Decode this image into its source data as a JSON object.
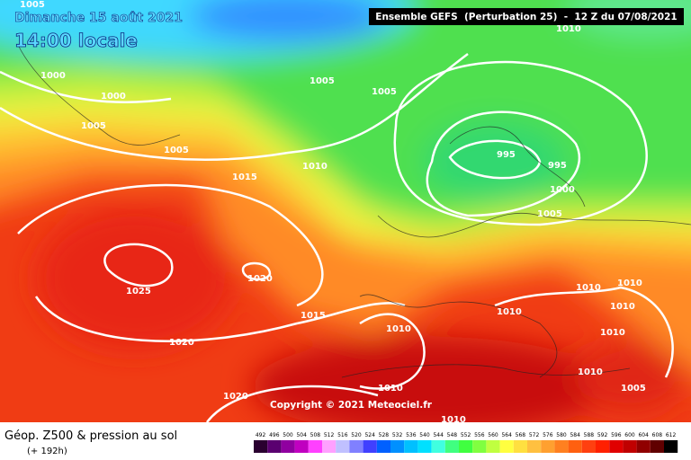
{
  "header": {
    "title": "Dimanche 15 août 2021",
    "time": "14:00 locale",
    "model": "Ensemble GEFS  (Perturbation 25)  -  12 Z du 07/08/2021"
  },
  "isobar_labels": [
    "1005",
    "1000",
    "1000",
    "1005",
    "1005",
    "1005",
    "1005",
    "1010",
    "1015",
    "995",
    "995",
    "1000",
    "1005",
    "1020",
    "1025",
    "1015",
    "1020",
    "1010",
    "1010",
    "1010",
    "1010",
    "1010",
    "1010",
    "1010",
    "1005",
    "1010",
    "1020",
    "1010",
    "1010"
  ],
  "copyright": "Copyright © 2021 Meteociel.fr",
  "footer": {
    "title": "Géop. Z500 & pression au sol",
    "lead": "(+ 192h)"
  },
  "legend": {
    "values": [
      492,
      496,
      500,
      504,
      508,
      512,
      516,
      520,
      524,
      528,
      532,
      536,
      540,
      544,
      548,
      552,
      556,
      560,
      564,
      568,
      572,
      576,
      580,
      584,
      588,
      592,
      596,
      600,
      604,
      608,
      612
    ]
  }
}
